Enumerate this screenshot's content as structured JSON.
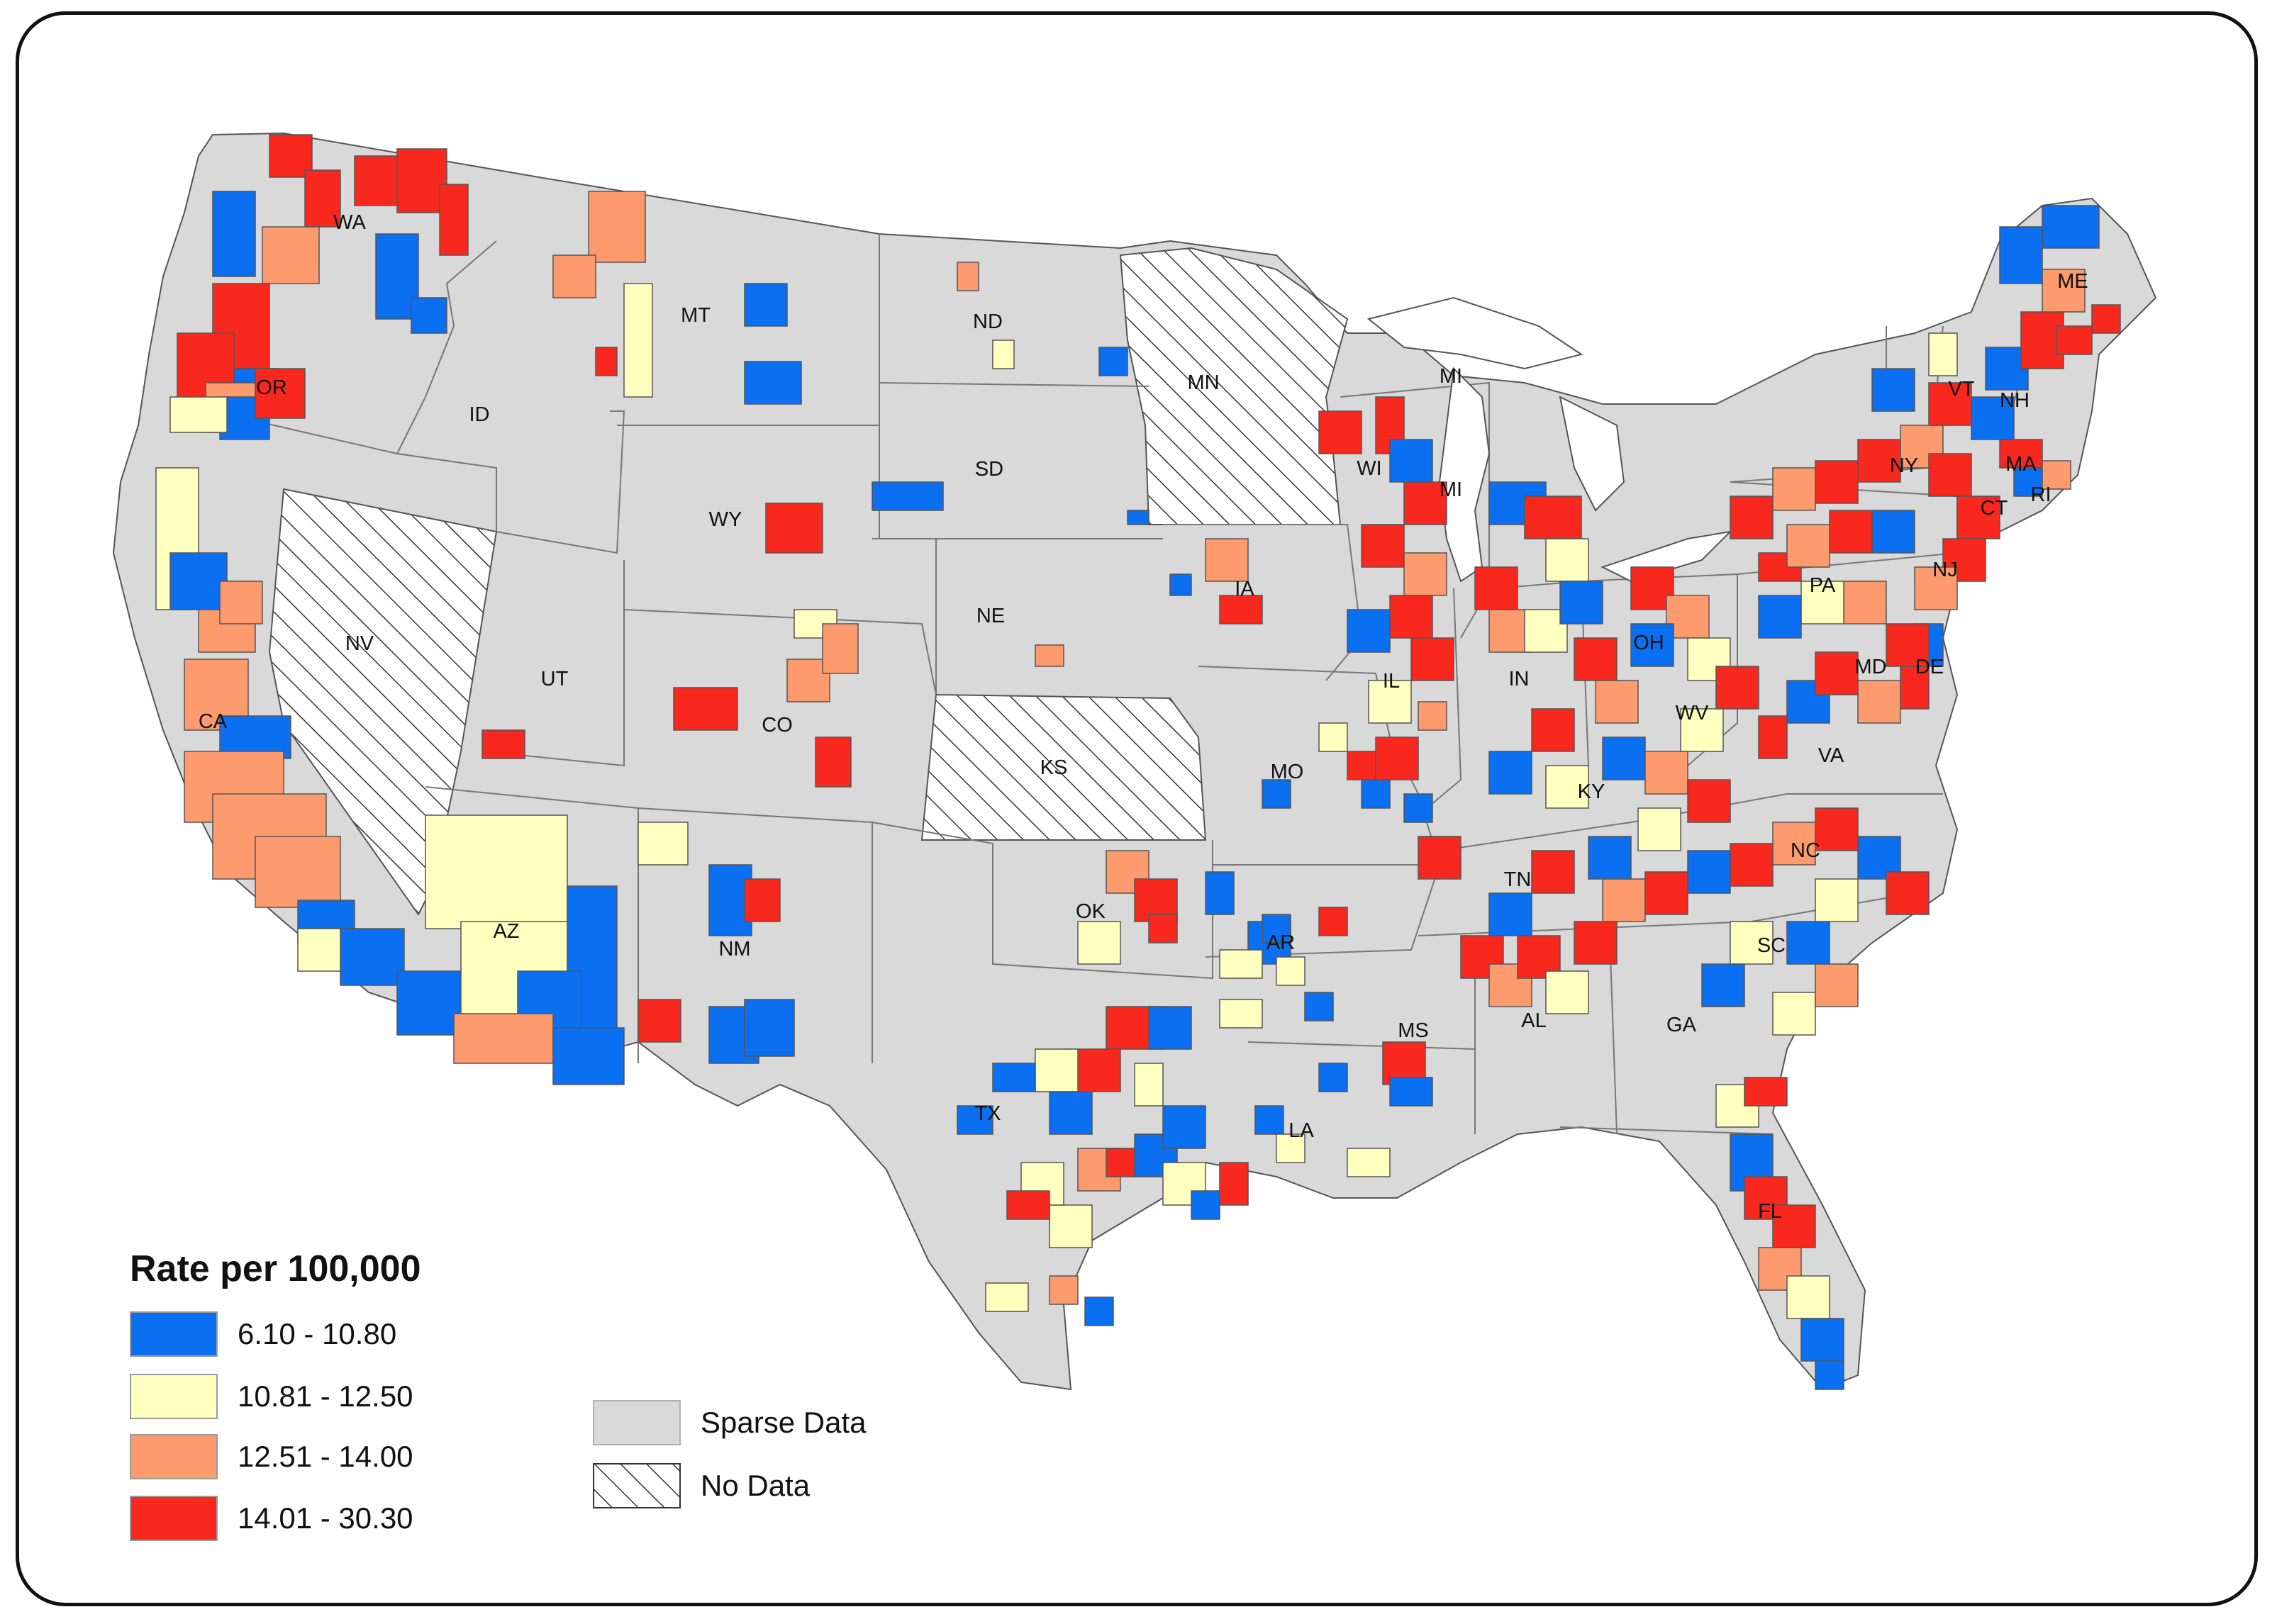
{
  "colors": {
    "class_1": "#0a6ff0",
    "class_2": "#ffffc0",
    "class_3": "#fd9a6e",
    "class_4": "#f8281f",
    "sparse": "#d9d9d9",
    "border": "#555555"
  },
  "legend": {
    "title": "Rate per 100,000",
    "classes": [
      {
        "label": "6.10 - 10.80",
        "color": "#0a6ff0"
      },
      {
        "label": "10.81 - 12.50",
        "color": "#ffffc0"
      },
      {
        "label": "12.51 - 14.00",
        "color": "#fd9a6e"
      },
      {
        "label": "14.01 - 30.30",
        "color": "#f8281f"
      }
    ],
    "sparse_label": "Sparse Data",
    "nodata_label": "No Data"
  },
  "states": [
    "WA",
    "OR",
    "CA",
    "ID",
    "NV",
    "MT",
    "WY",
    "UT",
    "AZ",
    "CO",
    "NM",
    "ND",
    "SD",
    "NE",
    "KS",
    "OK",
    "TX",
    "MN",
    "IA",
    "MO",
    "AR",
    "LA",
    "WI",
    "IL",
    "MI",
    "IN",
    "OH",
    "KY",
    "TN",
    "MS",
    "AL",
    "GA",
    "FL",
    "SC",
    "NC",
    "VA",
    "WV",
    "PA",
    "NY",
    "MD",
    "DE",
    "NJ",
    "CT",
    "RI",
    "MA",
    "VT",
    "NH",
    "ME"
  ]
}
